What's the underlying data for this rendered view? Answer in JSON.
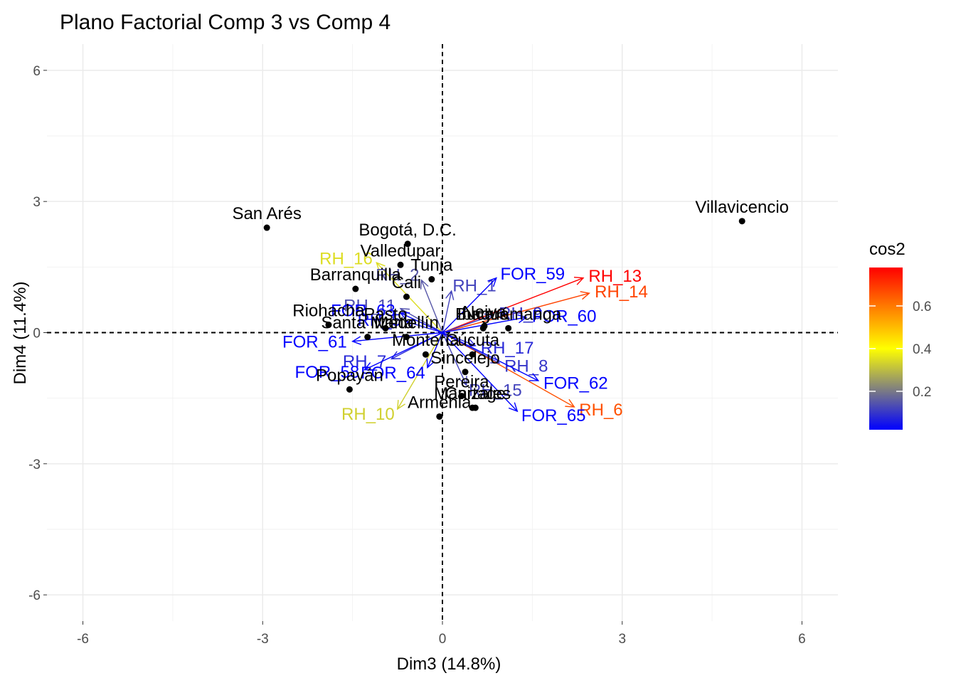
{
  "chart_data": {
    "type": "scatter",
    "title": "Plano Factorial Comp 3 vs Comp 4",
    "xlabel": "Dim3 (14.8%)",
    "ylabel": "Dim4 (11.4%)",
    "xlim": [
      -6.6,
      6.6
    ],
    "ylim": [
      -6.6,
      6.6
    ],
    "xticks": [
      -6,
      -3,
      0,
      3,
      6
    ],
    "yticks": [
      -6,
      -3,
      0,
      3,
      6
    ],
    "xtick_labels": [
      "-6",
      "-3",
      "0",
      "3",
      "6"
    ],
    "ytick_labels": [
      "-6",
      "-3",
      "0",
      "3",
      "6"
    ],
    "grid": true,
    "reference_lines": {
      "x": 0,
      "y": 0,
      "style": "dashed"
    },
    "individuals": [
      {
        "name": "San Arés",
        "x": -2.93,
        "y": 2.4
      },
      {
        "name": "Bogotá, D.C.",
        "x": -0.58,
        "y": 2.03
      },
      {
        "name": "Villavicencio",
        "x": 5.0,
        "y": 2.55
      },
      {
        "name": "Valledupar",
        "x": -0.7,
        "y": 1.55
      },
      {
        "name": "Tunja",
        "x": -0.18,
        "y": 1.22
      },
      {
        "name": "Barranquilla",
        "x": -1.45,
        "y": 1.0
      },
      {
        "name": "Cali",
        "x": -0.6,
        "y": 0.82
      },
      {
        "name": "Neiva",
        "x": 0.7,
        "y": 0.15
      },
      {
        "name": "Riohacha",
        "x": -1.9,
        "y": 0.18
      },
      {
        "name": "Pasto",
        "x": -0.95,
        "y": 0.1
      },
      {
        "name": "Ibagué",
        "x": 0.68,
        "y": 0.1
      },
      {
        "name": "Bucaramanga",
        "x": 1.1,
        "y": 0.1
      },
      {
        "name": "Santa Marta",
        "x": -1.25,
        "y": -0.1
      },
      {
        "name": "Medellín",
        "x": -0.6,
        "y": -0.1
      },
      {
        "name": "Cúcuta",
        "x": 0.5,
        "y": -0.5
      },
      {
        "name": "Montería",
        "x": -0.28,
        "y": -0.5
      },
      {
        "name": "Sincelejo",
        "x": 0.38,
        "y": -0.9
      },
      {
        "name": "Popayán",
        "x": -1.55,
        "y": -1.3
      },
      {
        "name": "Pereira",
        "x": 0.32,
        "y": -1.45
      },
      {
        "name": "Manizales",
        "x": 0.5,
        "y": -1.72
      },
      {
        "name": "Armenia",
        "x": -0.05,
        "y": -1.92
      },
      {
        "name": "Cartage",
        "x": 0.55,
        "y": -1.72
      }
    ],
    "variables": [
      {
        "name": "RH_13",
        "x": 2.35,
        "y": 1.25,
        "cos2": 0.78
      },
      {
        "name": "RH_14",
        "x": 2.45,
        "y": 0.9,
        "cos2": 0.68
      },
      {
        "name": "RH_6",
        "x": 2.2,
        "y": -1.7,
        "cos2": 0.66
      },
      {
        "name": "RH_16",
        "x": -1.1,
        "y": 1.6,
        "cos2": 0.35
      },
      {
        "name": "RH_10",
        "x": -0.75,
        "y": -1.75,
        "cos2": 0.33
      },
      {
        "name": "RH_2",
        "x": -0.35,
        "y": 1.2,
        "cos2": 0.15
      },
      {
        "name": "RH_11",
        "x": -0.7,
        "y": 0.55,
        "cos2": 0.14
      },
      {
        "name": "RH_1",
        "x": 0.15,
        "y": 0.95,
        "cos2": 0.12
      },
      {
        "name": "RH_9",
        "x": 0.85,
        "y": 0.4,
        "cos2": 0.1
      },
      {
        "name": "RH_15",
        "x": 0.4,
        "y": -1.2,
        "cos2": 0.12
      },
      {
        "name": "RH_8",
        "x": 0.95,
        "y": -0.7,
        "cos2": 0.1
      },
      {
        "name": "RH_7",
        "x": -0.85,
        "y": -0.6,
        "cos2": 0.08
      },
      {
        "name": "RH_17",
        "x": 0.55,
        "y": -0.3,
        "cos2": 0.08
      },
      {
        "name": "RH_5",
        "x": -0.6,
        "y": 0.25,
        "cos2": 0.05
      },
      {
        "name": "FOR_59",
        "x": 0.9,
        "y": 1.25,
        "cos2": 0.02
      },
      {
        "name": "FOR_60",
        "x": 1.4,
        "y": 0.35,
        "cos2": 0.02
      },
      {
        "name": "FOR_61",
        "x": -1.5,
        "y": -0.2,
        "cos2": 0.02
      },
      {
        "name": "FOR_62",
        "x": 1.6,
        "y": -1.1,
        "cos2": 0.02
      },
      {
        "name": "FOR_63",
        "x": -0.7,
        "y": 0.45,
        "cos2": 0.02
      },
      {
        "name": "FOR_64",
        "x": -0.25,
        "y": -0.8,
        "cos2": 0.02
      },
      {
        "name": "FOR_65",
        "x": 1.25,
        "y": -1.8,
        "cos2": 0.02
      },
      {
        "name": "FOR_58",
        "x": -1.3,
        "y": -0.85,
        "cos2": 0.02
      }
    ],
    "legend": {
      "title": "cos2",
      "placement": "right",
      "range": [
        0.02,
        0.78
      ],
      "ticks": [
        0.2,
        0.4,
        0.6
      ],
      "tick_labels": [
        "0.2",
        "0.4",
        "0.6"
      ],
      "colors": {
        "low": "#0000ff",
        "mid": "#ffff00",
        "high": "#ff0000",
        "mid_value": 0.4
      }
    }
  }
}
